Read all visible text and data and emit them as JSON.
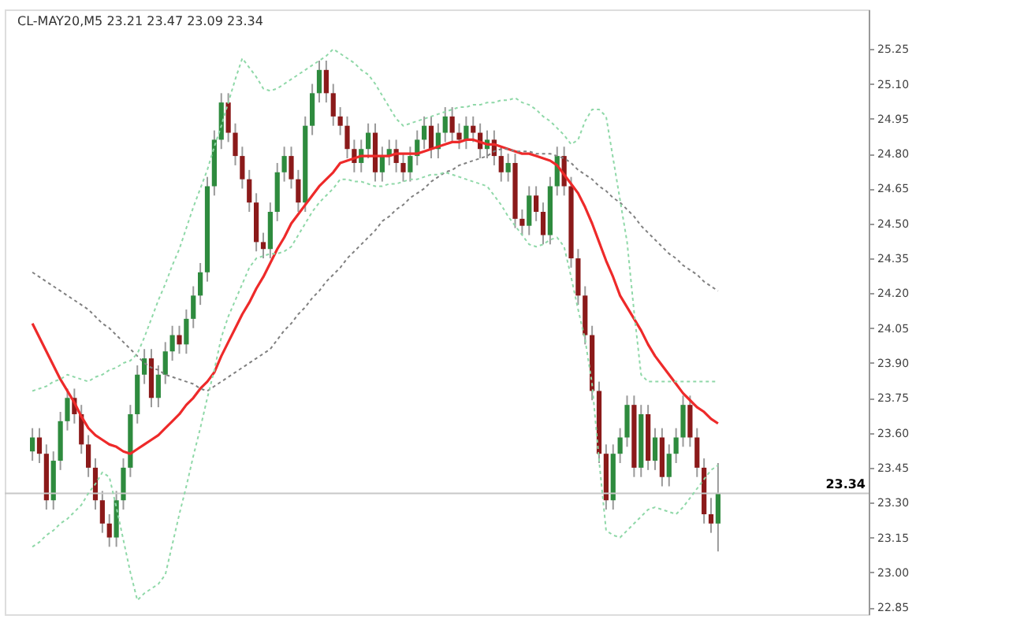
{
  "chart_data": {
    "type": "candlestick",
    "annotations": [
      "CL-MAY20,M5 23.21 23.47 23.09 23.34"
    ],
    "categories": [
      null,
      null,
      null,
      null,
      null,
      null,
      null,
      null,
      null,
      null,
      null,
      null,
      null,
      null,
      null,
      null,
      null,
      null,
      null,
      null,
      null,
      null,
      null,
      null,
      null,
      null,
      null,
      null,
      null,
      null,
      null,
      null,
      null,
      null,
      null,
      null,
      null,
      null,
      null,
      null,
      null,
      null,
      null,
      null,
      null,
      null,
      null,
      null,
      null,
      null,
      null,
      null,
      null,
      null,
      null,
      null,
      null,
      null,
      null,
      null,
      null,
      null,
      null,
      null,
      null,
      null,
      null,
      null,
      null,
      null,
      null,
      null,
      null,
      null,
      null,
      null,
      null,
      null,
      null,
      null,
      null,
      null,
      null,
      null,
      null,
      null,
      null,
      null,
      null,
      null,
      null,
      null,
      null,
      null,
      null,
      null,
      null,
      null,
      null
    ],
    "ohlc": [
      [
        23.52,
        23.62,
        23.48,
        23.58
      ],
      [
        23.58,
        23.62,
        23.47,
        23.51
      ],
      [
        23.51,
        23.55,
        23.27,
        23.31
      ],
      [
        23.31,
        23.52,
        23.27,
        23.48
      ],
      [
        23.48,
        23.69,
        23.44,
        23.65
      ],
      [
        23.65,
        23.79,
        23.61,
        23.75
      ],
      [
        23.75,
        23.79,
        23.64,
        23.68
      ],
      [
        23.68,
        23.72,
        23.51,
        23.55
      ],
      [
        23.55,
        23.59,
        23.41,
        23.45
      ],
      [
        23.45,
        23.49,
        23.27,
        23.31
      ],
      [
        23.31,
        23.35,
        23.17,
        23.21
      ],
      [
        23.21,
        23.25,
        23.11,
        23.15
      ],
      [
        23.15,
        23.35,
        23.11,
        23.31
      ],
      [
        23.31,
        23.49,
        23.27,
        23.45
      ],
      [
        23.45,
        23.72,
        23.41,
        23.68
      ],
      [
        23.68,
        23.89,
        23.64,
        23.85
      ],
      [
        23.85,
        23.96,
        23.81,
        23.92
      ],
      [
        23.92,
        23.96,
        23.71,
        23.75
      ],
      [
        23.75,
        23.89,
        23.71,
        23.85
      ],
      [
        23.85,
        23.99,
        23.81,
        23.95
      ],
      [
        23.95,
        24.06,
        23.91,
        24.02
      ],
      [
        24.02,
        24.06,
        23.94,
        23.98
      ],
      [
        23.98,
        24.13,
        23.94,
        24.09
      ],
      [
        24.09,
        24.23,
        24.05,
        24.19
      ],
      [
        24.19,
        24.33,
        24.15,
        24.29
      ],
      [
        24.29,
        24.7,
        24.25,
        24.66
      ],
      [
        24.66,
        24.9,
        24.62,
        24.86
      ],
      [
        24.86,
        25.06,
        24.82,
        25.02
      ],
      [
        25.02,
        25.06,
        24.85,
        24.89
      ],
      [
        24.89,
        24.93,
        24.75,
        24.79
      ],
      [
        24.79,
        24.83,
        24.65,
        24.69
      ],
      [
        24.69,
        24.73,
        24.55,
        24.59
      ],
      [
        24.59,
        24.63,
        24.38,
        24.42
      ],
      [
        24.42,
        24.46,
        24.35,
        24.39
      ],
      [
        24.39,
        24.59,
        24.35,
        24.55
      ],
      [
        24.55,
        24.76,
        24.51,
        24.72
      ],
      [
        24.72,
        24.83,
        24.68,
        24.79
      ],
      [
        24.79,
        24.83,
        24.65,
        24.69
      ],
      [
        24.69,
        24.73,
        24.55,
        24.59
      ],
      [
        24.59,
        24.96,
        24.55,
        24.92
      ],
      [
        24.92,
        25.1,
        24.88,
        25.06
      ],
      [
        25.06,
        25.2,
        25.02,
        25.16
      ],
      [
        25.16,
        25.2,
        25.02,
        25.06
      ],
      [
        25.06,
        25.1,
        24.92,
        24.96
      ],
      [
        24.96,
        25.0,
        24.88,
        24.92
      ],
      [
        24.92,
        24.96,
        24.78,
        24.82
      ],
      [
        24.82,
        24.86,
        24.72,
        24.76
      ],
      [
        24.76,
        24.86,
        24.72,
        24.82
      ],
      [
        24.82,
        24.93,
        24.78,
        24.89
      ],
      [
        24.89,
        24.93,
        24.68,
        24.72
      ],
      [
        24.72,
        24.83,
        24.68,
        24.79
      ],
      [
        24.79,
        24.86,
        24.75,
        24.82
      ],
      [
        24.82,
        24.86,
        24.72,
        24.76
      ],
      [
        24.76,
        24.8,
        24.68,
        24.72
      ],
      [
        24.72,
        24.83,
        24.68,
        24.79
      ],
      [
        24.79,
        24.9,
        24.75,
        24.86
      ],
      [
        24.86,
        24.96,
        24.82,
        24.92
      ],
      [
        24.92,
        24.96,
        24.78,
        24.82
      ],
      [
        24.82,
        24.93,
        24.78,
        24.89
      ],
      [
        24.89,
        25.0,
        24.85,
        24.96
      ],
      [
        24.96,
        25.0,
        24.85,
        24.89
      ],
      [
        24.89,
        24.93,
        24.82,
        24.86
      ],
      [
        24.86,
        24.96,
        24.82,
        24.92
      ],
      [
        24.92,
        24.96,
        24.85,
        24.89
      ],
      [
        24.89,
        24.93,
        24.78,
        24.82
      ],
      [
        24.82,
        24.9,
        24.78,
        24.86
      ],
      [
        24.86,
        24.9,
        24.75,
        24.79
      ],
      [
        24.79,
        24.83,
        24.68,
        24.72
      ],
      [
        24.72,
        24.8,
        24.68,
        24.76
      ],
      [
        24.76,
        24.8,
        24.48,
        24.52
      ],
      [
        24.52,
        24.56,
        24.45,
        24.49
      ],
      [
        24.49,
        24.66,
        24.45,
        24.62
      ],
      [
        24.62,
        24.66,
        24.51,
        24.55
      ],
      [
        24.55,
        24.59,
        24.41,
        24.45
      ],
      [
        24.45,
        24.7,
        24.41,
        24.66
      ],
      [
        24.66,
        24.83,
        24.62,
        24.79
      ],
      [
        24.79,
        24.83,
        24.62,
        24.66
      ],
      [
        24.66,
        24.7,
        24.31,
        24.35
      ],
      [
        24.35,
        24.39,
        24.15,
        24.19
      ],
      [
        24.19,
        24.23,
        23.98,
        24.02
      ],
      [
        24.02,
        24.06,
        23.74,
        23.78
      ],
      [
        23.78,
        23.82,
        23.47,
        23.51
      ],
      [
        23.51,
        23.55,
        23.27,
        23.31
      ],
      [
        23.31,
        23.55,
        23.27,
        23.51
      ],
      [
        23.51,
        23.62,
        23.47,
        23.58
      ],
      [
        23.58,
        23.76,
        23.54,
        23.72
      ],
      [
        23.72,
        23.76,
        23.41,
        23.45
      ],
      [
        23.45,
        23.72,
        23.41,
        23.68
      ],
      [
        23.68,
        23.72,
        23.44,
        23.48
      ],
      [
        23.48,
        23.62,
        23.44,
        23.58
      ],
      [
        23.58,
        23.62,
        23.37,
        23.41
      ],
      [
        23.41,
        23.55,
        23.37,
        23.51
      ],
      [
        23.51,
        23.62,
        23.47,
        23.58
      ],
      [
        23.58,
        23.76,
        23.54,
        23.72
      ],
      [
        23.72,
        23.76,
        23.54,
        23.58
      ],
      [
        23.58,
        23.62,
        23.41,
        23.45
      ],
      [
        23.45,
        23.49,
        23.21,
        23.25
      ],
      [
        23.25,
        23.32,
        23.17,
        23.21
      ],
      [
        23.21,
        23.47,
        23.09,
        23.34
      ]
    ],
    "series": [
      {
        "type": "line",
        "color": "#ee2a2a",
        "line_style": "solid",
        "values": [
          24.07,
          24.01,
          23.95,
          23.89,
          23.83,
          23.78,
          23.73,
          23.67,
          23.62,
          23.59,
          23.57,
          23.55,
          23.54,
          23.52,
          23.51,
          23.53,
          23.55,
          23.57,
          23.59,
          23.62,
          23.65,
          23.68,
          23.72,
          23.75,
          23.79,
          23.82,
          23.86,
          23.93,
          23.99,
          24.05,
          24.11,
          24.16,
          24.22,
          24.27,
          24.33,
          24.39,
          24.44,
          24.5,
          24.54,
          24.58,
          24.62,
          24.66,
          24.69,
          24.72,
          24.76,
          24.77,
          24.78,
          24.79,
          24.79,
          24.79,
          24.79,
          24.79,
          24.8,
          24.8,
          24.8,
          24.8,
          24.81,
          24.82,
          24.83,
          24.84,
          24.85,
          24.85,
          24.86,
          24.86,
          24.85,
          24.84,
          24.84,
          24.83,
          24.82,
          24.81,
          24.8,
          24.8,
          24.79,
          24.78,
          24.77,
          24.75,
          24.71,
          24.67,
          24.63,
          24.57,
          24.5,
          24.42,
          24.34,
          24.27,
          24.19,
          24.14,
          24.09,
          24.04,
          23.98,
          23.93,
          23.89,
          23.85,
          23.81,
          23.77,
          23.74,
          23.71,
          23.69,
          23.66,
          23.64
        ]
      },
      {
        "type": "line",
        "color": "#808080",
        "line_style": "dotted",
        "values": [
          24.29,
          24.27,
          24.25,
          24.23,
          24.21,
          24.19,
          24.17,
          24.15,
          24.13,
          24.1,
          24.07,
          24.05,
          24.02,
          23.99,
          23.96,
          23.93,
          23.9,
          23.88,
          23.87,
          23.85,
          23.84,
          23.83,
          23.82,
          23.81,
          23.79,
          23.78,
          23.8,
          23.82,
          23.84,
          23.86,
          23.88,
          23.9,
          23.92,
          23.94,
          23.96,
          24.0,
          24.04,
          24.07,
          24.11,
          24.14,
          24.18,
          24.21,
          24.25,
          24.28,
          24.31,
          24.35,
          24.38,
          24.41,
          24.44,
          24.47,
          24.51,
          24.53,
          24.56,
          24.58,
          24.61,
          24.63,
          24.65,
          24.68,
          24.7,
          24.72,
          24.73,
          24.75,
          24.76,
          24.77,
          24.78,
          24.79,
          24.81,
          24.82,
          24.82,
          24.81,
          24.81,
          24.81,
          24.8,
          24.8,
          24.8,
          24.79,
          24.78,
          24.76,
          24.73,
          24.71,
          24.69,
          24.66,
          24.64,
          24.61,
          24.59,
          24.56,
          24.53,
          24.49,
          24.46,
          24.43,
          24.4,
          24.37,
          24.35,
          24.32,
          24.3,
          24.28,
          24.25,
          24.23,
          24.21
        ]
      },
      {
        "type": "line",
        "color": "#8fd8a8",
        "line_style": "dotted",
        "values": [
          23.78,
          23.79,
          23.8,
          23.82,
          23.83,
          23.85,
          23.84,
          23.83,
          23.82,
          23.84,
          23.85,
          23.87,
          23.88,
          23.9,
          23.91,
          23.94,
          24.01,
          24.09,
          24.17,
          24.24,
          24.32,
          24.39,
          24.48,
          24.57,
          24.65,
          24.73,
          24.83,
          24.92,
          25.02,
          25.12,
          25.21,
          25.17,
          25.13,
          25.08,
          25.07,
          25.08,
          25.1,
          25.12,
          25.14,
          25.16,
          25.18,
          25.2,
          25.22,
          25.25,
          25.23,
          25.21,
          25.19,
          25.16,
          25.14,
          25.1,
          25.05,
          25.0,
          24.95,
          24.92,
          24.93,
          24.94,
          24.95,
          24.96,
          24.97,
          24.98,
          24.99,
          25.0,
          25.0,
          25.01,
          25.01,
          25.02,
          25.02,
          25.03,
          25.03,
          25.04,
          25.02,
          25.01,
          24.99,
          24.96,
          24.94,
          24.91,
          24.88,
          24.84,
          24.86,
          24.94,
          24.99,
          24.99,
          24.96,
          24.78,
          24.6,
          24.42,
          24.12,
          23.85,
          23.82,
          23.82,
          23.82,
          23.82,
          23.82,
          23.82,
          23.82,
          23.82,
          23.82,
          23.82,
          23.82
        ]
      },
      {
        "type": "line",
        "color": "#8fd8a8",
        "line_style": "dotted",
        "values": [
          23.11,
          23.13,
          23.16,
          23.18,
          23.21,
          23.23,
          23.26,
          23.29,
          23.34,
          23.38,
          23.43,
          23.41,
          23.28,
          23.14,
          23.0,
          22.88,
          22.91,
          22.93,
          22.95,
          22.99,
          23.12,
          23.25,
          23.37,
          23.5,
          23.62,
          23.75,
          23.87,
          24.01,
          24.1,
          24.17,
          24.24,
          24.31,
          24.35,
          24.36,
          24.37,
          24.37,
          24.38,
          24.4,
          24.45,
          24.5,
          24.55,
          24.59,
          24.62,
          24.65,
          24.69,
          24.69,
          24.68,
          24.68,
          24.67,
          24.66,
          24.66,
          24.67,
          24.67,
          24.68,
          24.69,
          24.69,
          24.7,
          24.71,
          24.71,
          24.72,
          24.71,
          24.7,
          24.69,
          24.68,
          24.67,
          24.66,
          24.62,
          24.58,
          24.53,
          24.49,
          24.45,
          24.41,
          24.4,
          24.41,
          24.43,
          24.44,
          24.4,
          24.27,
          24.13,
          24.0,
          23.81,
          23.48,
          23.18,
          23.16,
          23.15,
          23.18,
          23.21,
          23.24,
          23.27,
          23.28,
          23.27,
          23.26,
          23.25,
          23.28,
          23.32,
          23.36,
          23.4,
          23.44,
          23.46
        ]
      }
    ],
    "ylim": [
      22.82,
      25.42
    ],
    "yticks": [
      {
        "value": 22.85,
        "label": "22.85"
      },
      {
        "value": 23.0,
        "label": "23.00"
      },
      {
        "value": 23.15,
        "label": "23.15"
      },
      {
        "value": 23.3,
        "label": "23.30"
      },
      {
        "value": 23.45,
        "label": "23.45"
      },
      {
        "value": 23.6,
        "label": "23.60"
      },
      {
        "value": 23.75,
        "label": "23.75"
      },
      {
        "value": 23.9,
        "label": "23.90"
      },
      {
        "value": 24.05,
        "label": "24.05"
      },
      {
        "value": 24.2,
        "label": "24.20"
      },
      {
        "value": 24.35,
        "label": "24.35"
      },
      {
        "value": 24.5,
        "label": "24.50"
      },
      {
        "value": 24.65,
        "label": "24.65"
      },
      {
        "value": 24.8,
        "label": "24.80"
      },
      {
        "value": 24.95,
        "label": "24.95"
      },
      {
        "value": 25.1,
        "label": "25.10"
      },
      {
        "value": 25.25,
        "label": "25.25"
      }
    ],
    "tick_labels": "y",
    "grid": false,
    "ref_lines": [
      {
        "axis": "y",
        "value": 23.34,
        "label": "23.34",
        "color": "#c8c8c8",
        "line_style": "solid"
      }
    ]
  }
}
